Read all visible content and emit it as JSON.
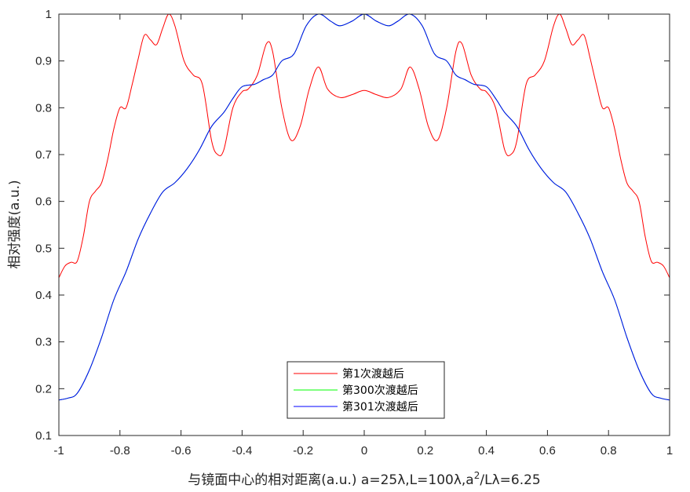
{
  "chart_data": {
    "type": "line",
    "xlabel": "与镜面中心的相对距离(a.u.) a=25λ,L=100λ,a²/Lλ=6.25",
    "xlabel_main": "与镜面中心的相对距离(a.u.) a=25λ,L=100λ,a",
    "xlabel_sup": "2",
    "xlabel_tail": "/Lλ=6.25",
    "ylabel": "相对强度(a.u.)",
    "xlim": [
      -1,
      1
    ],
    "ylim": [
      0.1,
      1
    ],
    "xticks": [
      -1,
      -0.8,
      -0.6,
      -0.4,
      -0.2,
      0,
      0.2,
      0.4,
      0.6,
      0.8,
      1
    ],
    "xtick_labels": [
      "-1",
      "-0.8",
      "-0.6",
      "-0.4",
      "-0.2",
      "0",
      "0.2",
      "0.4",
      "0.6",
      "0.8",
      "1"
    ],
    "yticks": [
      0.1,
      0.2,
      0.3,
      0.4,
      0.5,
      0.6,
      0.7,
      0.8,
      0.9,
      1
    ],
    "ytick_labels": [
      "0.1",
      "0.2",
      "0.3",
      "0.4",
      "0.5",
      "0.6",
      "0.7",
      "0.8",
      "0.9",
      "1"
    ],
    "grid": false,
    "legend_position": "bottom-center",
    "series": [
      {
        "name": "第1次渡越后",
        "color": "#ff0000",
        "symmetric": true,
        "x": [
          0,
          0.04,
          0.08,
          0.12,
          0.15,
          0.18,
          0.21,
          0.24,
          0.27,
          0.3,
          0.32,
          0.35,
          0.38,
          0.4,
          0.43,
          0.46,
          0.48,
          0.5,
          0.53,
          0.56,
          0.59,
          0.62,
          0.64,
          0.66,
          0.68,
          0.7,
          0.72,
          0.74,
          0.76,
          0.78,
          0.8,
          0.82,
          0.84,
          0.86,
          0.88,
          0.9,
          0.92,
          0.94,
          0.96,
          0.98,
          1
        ],
        "y": [
          0.837,
          0.828,
          0.822,
          0.84,
          0.887,
          0.84,
          0.76,
          0.731,
          0.8,
          0.92,
          0.937,
          0.87,
          0.84,
          0.834,
          0.8,
          0.71,
          0.7,
          0.73,
          0.85,
          0.87,
          0.9,
          0.975,
          1.0,
          0.97,
          0.935,
          0.945,
          0.955,
          0.905,
          0.85,
          0.8,
          0.8,
          0.755,
          0.69,
          0.64,
          0.622,
          0.6,
          0.525,
          0.472,
          0.47,
          0.462,
          0.437
        ]
      },
      {
        "name": "第300次渡越后",
        "color": "#00ff00",
        "symmetric": true,
        "x": [
          0,
          0.04,
          0.08,
          0.11,
          0.15,
          0.19,
          0.23,
          0.27,
          0.3,
          0.33,
          0.36,
          0.4,
          0.43,
          0.46,
          0.5,
          0.54,
          0.58,
          0.62,
          0.66,
          0.7,
          0.74,
          0.78,
          0.82,
          0.86,
          0.9,
          0.94,
          0.97,
          1
        ],
        "y": [
          1.0,
          0.985,
          0.975,
          0.985,
          1.0,
          0.975,
          0.915,
          0.9,
          0.87,
          0.86,
          0.85,
          0.845,
          0.82,
          0.79,
          0.76,
          0.71,
          0.67,
          0.64,
          0.62,
          0.575,
          0.52,
          0.45,
          0.39,
          0.31,
          0.24,
          0.19,
          0.18,
          0.176
        ]
      },
      {
        "name": "第301次渡越后",
        "color": "#0000ff",
        "symmetric": true,
        "x": [
          0,
          0.04,
          0.08,
          0.11,
          0.15,
          0.19,
          0.23,
          0.27,
          0.3,
          0.33,
          0.36,
          0.4,
          0.43,
          0.46,
          0.5,
          0.54,
          0.58,
          0.62,
          0.66,
          0.7,
          0.74,
          0.78,
          0.82,
          0.86,
          0.9,
          0.94,
          0.97,
          1
        ],
        "y": [
          1.0,
          0.985,
          0.975,
          0.985,
          1.0,
          0.975,
          0.915,
          0.9,
          0.87,
          0.86,
          0.85,
          0.845,
          0.82,
          0.79,
          0.76,
          0.71,
          0.67,
          0.64,
          0.62,
          0.575,
          0.52,
          0.45,
          0.39,
          0.31,
          0.24,
          0.19,
          0.18,
          0.176
        ]
      }
    ]
  }
}
